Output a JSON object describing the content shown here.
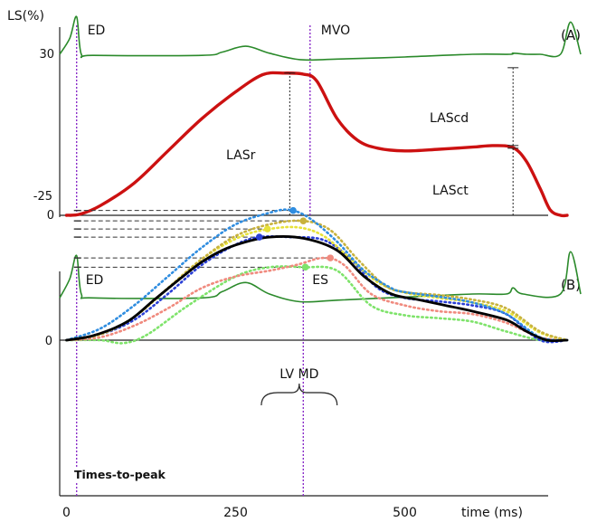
{
  "chart_data": [
    {
      "panel_label": "(A)",
      "type": "line",
      "ylabel": "LS(%)",
      "yticks": [
        {
          "value": 0,
          "label": "0"
        },
        {
          "value": 30,
          "label": "30"
        }
      ],
      "ylim": [
        0,
        30
      ],
      "xlim": [
        -10,
        760
      ],
      "markers": [
        {
          "label": "ED",
          "x": 15
        },
        {
          "label": "MVO",
          "x": 360
        }
      ],
      "ecg_trace": {
        "color": "#2b8a2b",
        "points": [
          [
            -10,
            30
          ],
          [
            5,
            33
          ],
          [
            15,
            37
          ],
          [
            22,
            30
          ],
          [
            40,
            29.8
          ],
          [
            200,
            29.8
          ],
          [
            230,
            30.4
          ],
          [
            265,
            31.5
          ],
          [
            300,
            30.2
          ],
          [
            345,
            29
          ],
          [
            400,
            29.1
          ],
          [
            500,
            29.5
          ],
          [
            600,
            30
          ],
          [
            655,
            30
          ],
          [
            660,
            30.2
          ],
          [
            680,
            30
          ],
          [
            700,
            30
          ],
          [
            730,
            30
          ],
          [
            745,
            36
          ],
          [
            760,
            30
          ]
        ]
      },
      "strain_curve": {
        "color": "#cc1111",
        "points": [
          [
            0,
            0
          ],
          [
            20,
            0.2
          ],
          [
            50,
            1.8
          ],
          [
            100,
            6
          ],
          [
            150,
            12
          ],
          [
            200,
            18
          ],
          [
            250,
            23
          ],
          [
            290,
            26.2
          ],
          [
            320,
            26.5
          ],
          [
            350,
            26.3
          ],
          [
            370,
            25
          ],
          [
            400,
            18
          ],
          [
            430,
            14
          ],
          [
            460,
            12.5
          ],
          [
            500,
            12
          ],
          [
            550,
            12.3
          ],
          [
            600,
            12.7
          ],
          [
            630,
            13
          ],
          [
            660,
            12.6
          ],
          [
            680,
            10
          ],
          [
            700,
            5
          ],
          [
            715,
            1
          ],
          [
            730,
            0
          ],
          [
            740,
            0
          ]
        ]
      },
      "measurements": [
        {
          "label": "LASr",
          "x": 330,
          "from": 0,
          "to": 26.5
        },
        {
          "label": "LAScd",
          "x": 660,
          "from": 13,
          "to": 27.5
        },
        {
          "label": "LASct",
          "x": 660,
          "from": 0,
          "to": 12.5
        }
      ]
    },
    {
      "panel_label": "(B)",
      "type": "line",
      "xlabel": "time (ms)",
      "xticks": [
        {
          "value": 0,
          "label": "0"
        },
        {
          "value": 250,
          "label": "250"
        },
        {
          "value": 500,
          "label": "500"
        }
      ],
      "yticks": [
        {
          "value": 0,
          "label": "0"
        },
        {
          "value": -25,
          "label": "-25"
        }
      ],
      "ylim": [
        -25,
        0
      ],
      "xlim": [
        -10,
        760
      ],
      "markers": [
        {
          "label": "ED",
          "x": 15
        },
        {
          "label": "ES",
          "x": 350
        }
      ],
      "annotations": {
        "lv_md_label": "LV MD",
        "lv_md_range": [
          288,
          400
        ],
        "times_to_peak_label": "Times-to-peak"
      },
      "ecg_trace": {
        "color": "#2b8a2b",
        "points": [
          [
            -10,
            5.5
          ],
          [
            5,
            8
          ],
          [
            15,
            11
          ],
          [
            22,
            6
          ],
          [
            40,
            5.5
          ],
          [
            200,
            5.5
          ],
          [
            230,
            6.3
          ],
          [
            265,
            7.5
          ],
          [
            300,
            6
          ],
          [
            345,
            5
          ],
          [
            400,
            5.2
          ],
          [
            500,
            5.6
          ],
          [
            600,
            6
          ],
          [
            650,
            6
          ],
          [
            660,
            6.8
          ],
          [
            675,
            6
          ],
          [
            730,
            6
          ],
          [
            745,
            11.5
          ],
          [
            760,
            6
          ]
        ]
      },
      "series": [
        {
          "color": "#7ee36a",
          "dotted": true,
          "points": [
            [
              0,
              0
            ],
            [
              50,
              0
            ],
            [
              85,
              0.5
            ],
            [
              120,
              -1
            ],
            [
              180,
              -6
            ],
            [
              250,
              -11
            ],
            [
              300,
              -12.6
            ],
            [
              350,
              -12.6
            ],
            [
              400,
              -12
            ],
            [
              450,
              -6
            ],
            [
              500,
              -4.3
            ],
            [
              550,
              -3.8
            ],
            [
              600,
              -3.2
            ],
            [
              650,
              -1.5
            ],
            [
              700,
              0
            ],
            [
              740,
              0
            ]
          ],
          "peak": [
            353,
            -12.6
          ]
        },
        {
          "color": "#f08a7e",
          "dotted": true,
          "points": [
            [
              0,
              0
            ],
            [
              50,
              -0.5
            ],
            [
              100,
              -2.5
            ],
            [
              150,
              -5.5
            ],
            [
              200,
              -9
            ],
            [
              250,
              -11
            ],
            [
              300,
              -12
            ],
            [
              340,
              -13
            ],
            [
              380,
              -14.2
            ],
            [
              410,
              -13
            ],
            [
              450,
              -8
            ],
            [
              500,
              -6
            ],
            [
              550,
              -5
            ],
            [
              600,
              -4.5
            ],
            [
              650,
              -3
            ],
            [
              700,
              -0.5
            ],
            [
              740,
              0
            ]
          ],
          "peak": [
            390,
            -14.2
          ]
        },
        {
          "color": "#2a3fd6",
          "dotted": true,
          "points": [
            [
              0,
              0
            ],
            [
              50,
              -1
            ],
            [
              100,
              -3.5
            ],
            [
              150,
              -8
            ],
            [
              200,
              -13
            ],
            [
              250,
              -16.5
            ],
            [
              285,
              -17.8
            ],
            [
              330,
              -17.8
            ],
            [
              380,
              -17.3
            ],
            [
              420,
              -14
            ],
            [
              460,
              -9
            ],
            [
              500,
              -7.3
            ],
            [
              550,
              -6.7
            ],
            [
              600,
              -6
            ],
            [
              650,
              -4.5
            ],
            [
              700,
              0
            ],
            [
              740,
              0
            ]
          ],
          "peak": [
            285,
            -17.8
          ]
        },
        {
          "color": "#e7e23a",
          "dotted": true,
          "points": [
            [
              0,
              0
            ],
            [
              50,
              -1
            ],
            [
              100,
              -4
            ],
            [
              150,
              -9
            ],
            [
              200,
              -14
            ],
            [
              250,
              -17.5
            ],
            [
              290,
              -19
            ],
            [
              340,
              -19.5
            ],
            [
              380,
              -18
            ],
            [
              420,
              -14
            ],
            [
              460,
              -10
            ],
            [
              500,
              -8.2
            ],
            [
              550,
              -7.3
            ],
            [
              600,
              -6.5
            ],
            [
              650,
              -5
            ],
            [
              700,
              -1.3
            ],
            [
              740,
              0
            ]
          ],
          "peak": [
            297,
            -19.2
          ]
        },
        {
          "color": "#c8b23c",
          "dotted": true,
          "points": [
            [
              0,
              0
            ],
            [
              50,
              -1
            ],
            [
              100,
              -4
            ],
            [
              150,
              -9
            ],
            [
              200,
              -14
            ],
            [
              250,
              -18
            ],
            [
              300,
              -20
            ],
            [
              350,
              -20.6
            ],
            [
              390,
              -19
            ],
            [
              430,
              -14
            ],
            [
              470,
              -9.5
            ],
            [
              500,
              -8.3
            ],
            [
              550,
              -7.8
            ],
            [
              600,
              -7
            ],
            [
              650,
              -5.5
            ],
            [
              700,
              -1.5
            ],
            [
              740,
              0
            ]
          ],
          "peak": [
            350,
            -20.6
          ]
        },
        {
          "color": "#2f8de0",
          "dotted": true,
          "points": [
            [
              0,
              0
            ],
            [
              50,
              -2
            ],
            [
              100,
              -6
            ],
            [
              150,
              -11
            ],
            [
              200,
              -16
            ],
            [
              250,
              -20
            ],
            [
              300,
              -22
            ],
            [
              330,
              -22.5
            ],
            [
              360,
              -21
            ],
            [
              400,
              -17
            ],
            [
              440,
              -12
            ],
            [
              480,
              -9
            ],
            [
              500,
              -8.3
            ],
            [
              550,
              -7.5
            ],
            [
              600,
              -6.5
            ],
            [
              650,
              -4.5
            ],
            [
              700,
              -0.5
            ],
            [
              740,
              0
            ]
          ],
          "peak": [
            335,
            -22.4
          ]
        },
        {
          "color": "#000000",
          "dotted": false,
          "width": 2.8,
          "points": [
            [
              0,
              0
            ],
            [
              40,
              -0.8
            ],
            [
              90,
              -3.2
            ],
            [
              130,
              -7
            ],
            [
              170,
              -10.8
            ],
            [
              200,
              -13.5
            ],
            [
              230,
              -15.5
            ],
            [
              260,
              -16.8
            ],
            [
              300,
              -17.8
            ],
            [
              350,
              -17.6
            ],
            [
              400,
              -15.5
            ],
            [
              440,
              -11
            ],
            [
              480,
              -8
            ],
            [
              520,
              -7
            ],
            [
              560,
              -6
            ],
            [
              600,
              -5
            ],
            [
              650,
              -3.5
            ],
            [
              680,
              -1.5
            ],
            [
              710,
              0
            ],
            [
              740,
              0
            ]
          ]
        }
      ]
    }
  ]
}
